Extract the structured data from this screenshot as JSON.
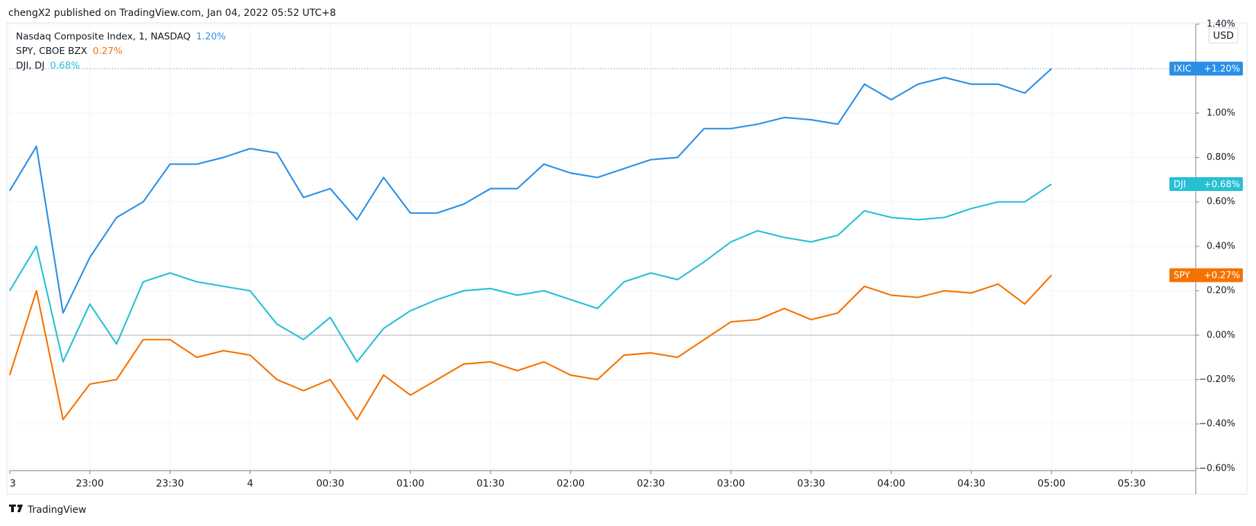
{
  "header": "chengX2 published on TradingView.com, Jan 04, 2022 05:52 UTC+8",
  "footer": "TradingView",
  "chart_data": {
    "type": "line",
    "currency": "USD",
    "x": [
      22.5,
      22.667,
      22.833,
      23,
      23.167,
      23.333,
      23.5,
      23.667,
      23.833,
      24,
      24.167,
      24.333,
      24.5,
      24.667,
      24.833,
      25,
      25.167,
      25.333,
      25.5,
      25.667,
      25.833,
      26,
      26.167,
      26.333,
      26.5,
      26.667,
      26.833,
      27,
      27.167,
      27.333,
      27.5,
      27.667,
      27.833,
      28,
      28.167,
      28.333,
      28.5,
      28.667,
      28.833,
      29
    ],
    "xlim": [
      22.5,
      29.9
    ],
    "xticks": [
      {
        "value": 22.5,
        "label": "3"
      },
      {
        "value": 23,
        "label": "23:00"
      },
      {
        "value": 23.5,
        "label": "23:30"
      },
      {
        "value": 24,
        "label": "4"
      },
      {
        "value": 24.5,
        "label": "00:30"
      },
      {
        "value": 25,
        "label": "01:00"
      },
      {
        "value": 25.5,
        "label": "01:30"
      },
      {
        "value": 26,
        "label": "02:00"
      },
      {
        "value": 26.5,
        "label": "02:30"
      },
      {
        "value": 27,
        "label": "03:00"
      },
      {
        "value": 27.5,
        "label": "03:30"
      },
      {
        "value": 28,
        "label": "04:00"
      },
      {
        "value": 28.5,
        "label": "04:30"
      },
      {
        "value": 29,
        "label": "05:00"
      },
      {
        "value": 29.5,
        "label": "05:30"
      }
    ],
    "ylim": [
      -0.61,
      1.4
    ],
    "yticks": [
      {
        "value": -0.6,
        "label": "−0.60%"
      },
      {
        "value": -0.4,
        "label": "−0.40%"
      },
      {
        "value": -0.2,
        "label": "−0.20%"
      },
      {
        "value": 0,
        "label": "0.00%"
      },
      {
        "value": 0.2,
        "label": "0.20%"
      },
      {
        "value": 0.4,
        "label": "0.40%"
      },
      {
        "value": 0.6,
        "label": "0.60%"
      },
      {
        "value": 0.8,
        "label": "0.80%"
      },
      {
        "value": 1,
        "label": "1.00%"
      },
      {
        "value": 1.2,
        "label": "1.20%"
      },
      {
        "value": 1.4,
        "label": "1.40%"
      }
    ],
    "grid": true,
    "series": [
      {
        "name": "Nasdaq Composite Index, 1, NASDAQ",
        "legend_value": "1.20%",
        "symbol": "IXIC",
        "badge_value": "+1.20%",
        "color": "#2a8fe6",
        "values": [
          0.65,
          0.85,
          0.1,
          0.35,
          0.53,
          0.6,
          0.77,
          0.77,
          0.8,
          0.84,
          0.82,
          0.62,
          0.66,
          0.52,
          0.71,
          0.55,
          0.55,
          0.59,
          0.66,
          0.66,
          0.77,
          0.73,
          0.71,
          0.75,
          0.79,
          0.8,
          0.93,
          0.93,
          0.95,
          0.98,
          0.97,
          0.95,
          1.13,
          1.06,
          1.13,
          1.16,
          1.13,
          1.13,
          1.09,
          1.2
        ]
      },
      {
        "name": "SPY, CBOE BZX",
        "legend_value": "0.27%",
        "symbol": "SPY",
        "badge_value": "+0.27%",
        "color": "#f57200",
        "values": [
          -0.18,
          0.2,
          -0.38,
          -0.22,
          -0.2,
          -0.02,
          -0.02,
          -0.1,
          -0.07,
          -0.09,
          -0.2,
          -0.25,
          -0.2,
          -0.38,
          -0.18,
          -0.27,
          -0.2,
          -0.13,
          -0.12,
          -0.16,
          -0.12,
          -0.18,
          -0.2,
          -0.09,
          -0.08,
          -0.1,
          -0.02,
          0.06,
          0.07,
          0.12,
          0.07,
          0.1,
          0.22,
          0.18,
          0.17,
          0.2,
          0.19,
          0.23,
          0.14,
          0.27
        ]
      },
      {
        "name": "DJI, DJ",
        "legend_value": "0.68%",
        "symbol": "DJI",
        "badge_value": "+0.68%",
        "color": "#26c0d3",
        "values": [
          0.2,
          0.4,
          -0.12,
          0.14,
          -0.04,
          0.24,
          0.28,
          0.24,
          0.22,
          0.2,
          0.05,
          -0.02,
          0.08,
          -0.12,
          0.03,
          0.11,
          0.16,
          0.2,
          0.21,
          0.18,
          0.2,
          0.16,
          0.12,
          0.24,
          0.28,
          0.25,
          0.33,
          0.42,
          0.47,
          0.44,
          0.42,
          0.45,
          0.56,
          0.53,
          0.52,
          0.53,
          0.57,
          0.6,
          0.6,
          0.68
        ]
      }
    ]
  }
}
